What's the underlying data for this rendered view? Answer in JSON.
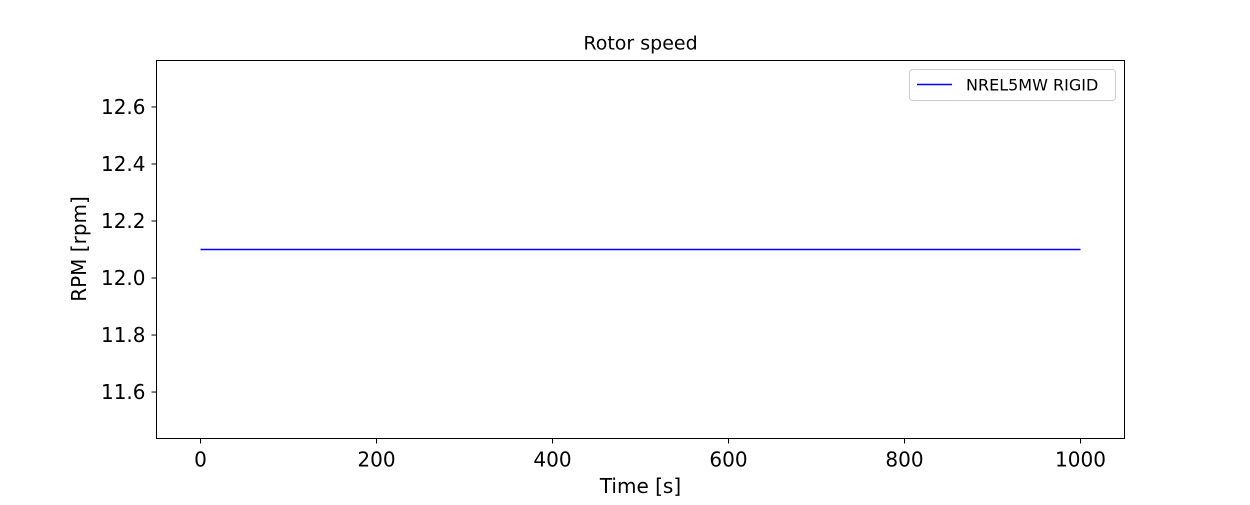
{
  "chart_data": {
    "type": "line",
    "title": "Rotor speed",
    "xlabel": "Time [s]",
    "ylabel": "RPM [rpm]",
    "xlim": [
      -50,
      1050
    ],
    "ylim": [
      11.437,
      12.763
    ],
    "xticks": [
      0,
      200,
      400,
      600,
      800,
      1000
    ],
    "xtick_labels": [
      "0",
      "200",
      "400",
      "600",
      "800",
      "1000"
    ],
    "yticks": [
      11.6,
      11.8,
      12.0,
      12.2,
      12.4,
      12.6
    ],
    "ytick_labels": [
      "11.6",
      "11.8",
      "12.0",
      "12.2",
      "12.4",
      "12.6"
    ],
    "grid": false,
    "legend_position": "top-right",
    "series": [
      {
        "name": "NREL5MW RIGID",
        "color": "#0000ff",
        "x": [
          0,
          1000
        ],
        "y": [
          12.1,
          12.1
        ]
      }
    ]
  }
}
